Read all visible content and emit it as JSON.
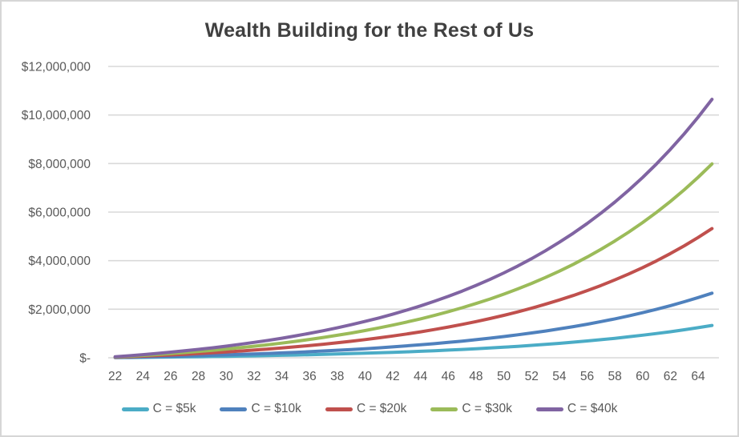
{
  "chart_data": {
    "type": "line",
    "title": "Wealth Building for the Rest of Us",
    "xlabel": "",
    "ylabel": "",
    "grid": true,
    "legend_position": "bottom",
    "xlim": [
      22,
      65
    ],
    "ylim": [
      0,
      12000000
    ],
    "x": [
      22,
      23,
      24,
      25,
      26,
      27,
      28,
      29,
      30,
      31,
      32,
      33,
      34,
      35,
      36,
      37,
      38,
      39,
      40,
      41,
      42,
      43,
      44,
      45,
      46,
      47,
      48,
      49,
      50,
      51,
      52,
      53,
      54,
      55,
      56,
      57,
      58,
      59,
      60,
      61,
      62,
      63,
      64,
      65
    ],
    "x_tick_labels": [
      "22",
      "24",
      "26",
      "28",
      "30",
      "32",
      "34",
      "36",
      "38",
      "40",
      "42",
      "44",
      "46",
      "48",
      "50",
      "52",
      "54",
      "56",
      "58",
      "60",
      "62",
      "64"
    ],
    "y_ticks": [
      {
        "value": 0,
        "label": "$-"
      },
      {
        "value": 2000000,
        "label": "$2,000,000"
      },
      {
        "value": 4000000,
        "label": "$4,000,000"
      },
      {
        "value": 6000000,
        "label": "$6,000,000"
      },
      {
        "value": 8000000,
        "label": "$8,000,000"
      },
      {
        "value": 10000000,
        "label": "$10,000,000"
      },
      {
        "value": 12000000,
        "label": "$12,000,000"
      }
    ],
    "series": [
      {
        "name": "C = $5k",
        "color": "#4BACC6",
        "values": [
          5000,
          10350,
          16075,
          22200,
          28754,
          35766,
          43270,
          51299,
          59890,
          69082,
          78918,
          89443,
          100703,
          112752,
          125645,
          139440,
          154201,
          169995,
          186895,
          204977,
          224326,
          245029,
          267181,
          290883,
          316245,
          343382,
          372419,
          403488,
          436733,
          472304,
          510365,
          551091,
          594667,
          641294,
          691184,
          744568,
          801687,
          862805,
          928201,
          998176,
          1073048,
          1153161,
          1238882,
          1330604
        ]
      },
      {
        "name": "C = $10k",
        "color": "#4F81BD",
        "values": [
          10000,
          20700,
          32150,
          44400,
          57508,
          71532,
          86540,
          102598,
          119780,
          138164,
          157836,
          178886,
          201406,
          225504,
          251290,
          278880,
          308402,
          339990,
          373790,
          409954,
          448652,
          490058,
          534362,
          581766,
          632490,
          686764,
          744838,
          806976,
          873466,
          944608,
          1020730,
          1102182,
          1189334,
          1282588,
          1382368,
          1489136,
          1603374,
          1725610,
          1856402,
          1996352,
          2146096,
          2306322,
          2477764,
          2661208
        ]
      },
      {
        "name": "C = $20k",
        "color": "#C0504D",
        "values": [
          20000,
          41400,
          64300,
          88800,
          115016,
          143064,
          173080,
          205196,
          239560,
          276328,
          315672,
          357772,
          402812,
          451008,
          502580,
          557760,
          616804,
          679980,
          747580,
          819908,
          897304,
          980116,
          1068724,
          1163532,
          1264980,
          1373528,
          1489676,
          1613952,
          1746932,
          1889216,
          2041460,
          2204364,
          2378668,
          2565176,
          2764736,
          2978272,
          3206748,
          3451220,
          3712804,
          3992704,
          4292192,
          4612644,
          4955528,
          5322416
        ]
      },
      {
        "name": "C = $30k",
        "color": "#9BBB59",
        "values": [
          30000,
          62100,
          96450,
          133200,
          172524,
          214596,
          259620,
          307794,
          359340,
          414492,
          473508,
          536658,
          604218,
          676512,
          753870,
          836640,
          925206,
          1019970,
          1121370,
          1229862,
          1345956,
          1470174,
          1603086,
          1745298,
          1897470,
          2060292,
          2234514,
          2420928,
          2620398,
          2833824,
          3062190,
          3306546,
          3568002,
          3847764,
          4147104,
          4467408,
          4810122,
          5176830,
          5569206,
          5989056,
          6438288,
          6918966,
          7433292,
          7983624
        ]
      },
      {
        "name": "C = $40k",
        "color": "#8064A2",
        "values": [
          40000,
          82800,
          128600,
          177600,
          230032,
          286128,
          346160,
          410392,
          479120,
          552656,
          631344,
          715544,
          805624,
          902016,
          1005160,
          1115520,
          1233608,
          1359960,
          1495160,
          1639816,
          1794608,
          1960232,
          2137448,
          2327064,
          2529960,
          2747056,
          2979352,
          3227904,
          3493864,
          3778432,
          4082920,
          4408728,
          4757336,
          5130352,
          5529472,
          5956544,
          6413496,
          6902440,
          7425608,
          7985408,
          8584384,
          9225288,
          9911056,
          10644832
        ]
      }
    ],
    "style": {
      "title_color": "#404040",
      "axis_text_color": "#595959",
      "gridline_color": "#D9D9D9",
      "background": "#FFFFFF",
      "border_color": "#D6D6D6",
      "line_width": 4
    }
  }
}
